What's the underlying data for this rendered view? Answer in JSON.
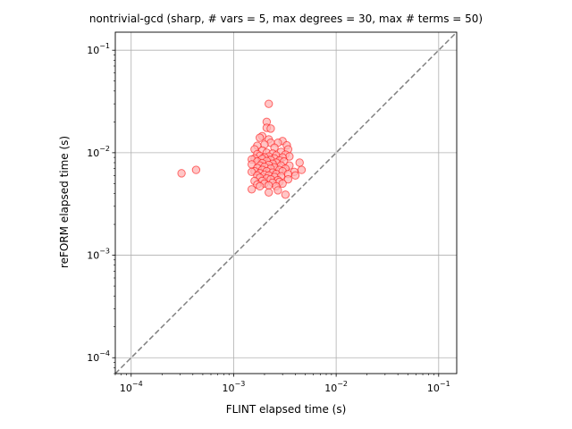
{
  "chart_data": {
    "type": "scatter",
    "title": "nontrivial-gcd (sharp, # vars = 5, max degrees = 30, max # terms = 50)",
    "xlabel": "FLINT elapsed time (s)",
    "ylabel": "reFORM elapsed time (s)",
    "xscale": "log",
    "yscale": "log",
    "xlim": [
      7e-05,
      0.15
    ],
    "ylim": [
      7e-05,
      0.15
    ],
    "grid": true,
    "x_ticks": [
      {
        "value": 0.0001,
        "base": "10",
        "exp": "−4"
      },
      {
        "value": 0.001,
        "base": "10",
        "exp": "−3"
      },
      {
        "value": 0.01,
        "base": "10",
        "exp": "−2"
      },
      {
        "value": 0.1,
        "base": "10",
        "exp": "−1"
      }
    ],
    "y_ticks": [
      {
        "value": 0.0001,
        "base": "10",
        "exp": "−4"
      },
      {
        "value": 0.001,
        "base": "10",
        "exp": "−3"
      },
      {
        "value": 0.01,
        "base": "10",
        "exp": "−2"
      },
      {
        "value": 0.1,
        "base": "10",
        "exp": "−1"
      }
    ],
    "reference_line": {
      "style": "dashed",
      "color": "#808080",
      "relation": "y = x"
    },
    "marker": {
      "edge_color": "#ff0000",
      "face_color": "#ffb3b3"
    },
    "series": [
      {
        "points": [
          [
            0.00031,
            0.0063
          ],
          [
            0.00043,
            0.0068
          ],
          [
            0.0022,
            0.03
          ],
          [
            0.0021,
            0.02
          ],
          [
            0.0021,
            0.0175
          ],
          [
            0.0023,
            0.0172
          ],
          [
            0.0019,
            0.0145
          ],
          [
            0.0018,
            0.014
          ],
          [
            0.0022,
            0.0135
          ],
          [
            0.003,
            0.013
          ],
          [
            0.0027,
            0.0125
          ],
          [
            0.0023,
            0.0125
          ],
          [
            0.002,
            0.012
          ],
          [
            0.0033,
            0.0118
          ],
          [
            0.0017,
            0.0117
          ],
          [
            0.0025,
            0.0112
          ],
          [
            0.0034,
            0.0108
          ],
          [
            0.0016,
            0.0108
          ],
          [
            0.0019,
            0.0105
          ],
          [
            0.0029,
            0.0102
          ],
          [
            0.0021,
            0.01
          ],
          [
            0.0024,
            0.0098
          ],
          [
            0.0017,
            0.0097
          ],
          [
            0.0032,
            0.0096
          ],
          [
            0.0026,
            0.0094
          ],
          [
            0.0018,
            0.0093
          ],
          [
            0.0022,
            0.0092
          ],
          [
            0.0035,
            0.0092
          ],
          [
            0.002,
            0.009
          ],
          [
            0.003,
            0.009
          ],
          [
            0.0016,
            0.0088
          ],
          [
            0.0025,
            0.0088
          ],
          [
            0.0019,
            0.0087
          ],
          [
            0.0015,
            0.0086
          ],
          [
            0.0023,
            0.0085
          ],
          [
            0.0028,
            0.0084
          ],
          [
            0.0021,
            0.0083
          ],
          [
            0.0017,
            0.0082
          ],
          [
            0.0031,
            0.0082
          ],
          [
            0.0044,
            0.008
          ],
          [
            0.0026,
            0.008
          ],
          [
            0.0019,
            0.0079
          ],
          [
            0.0024,
            0.0078
          ],
          [
            0.0015,
            0.0077
          ],
          [
            0.0022,
            0.0076
          ],
          [
            0.0018,
            0.0075
          ],
          [
            0.0029,
            0.0075
          ],
          [
            0.0035,
            0.0075
          ],
          [
            0.002,
            0.0073
          ],
          [
            0.0025,
            0.0072
          ],
          [
            0.0017,
            0.0071
          ],
          [
            0.0032,
            0.007
          ],
          [
            0.0023,
            0.007
          ],
          [
            0.0046,
            0.0068
          ],
          [
            0.0019,
            0.0068
          ],
          [
            0.0028,
            0.0068
          ],
          [
            0.0016,
            0.0066
          ],
          [
            0.0021,
            0.0066
          ],
          [
            0.0015,
            0.0065
          ],
          [
            0.003,
            0.0066
          ],
          [
            0.0024,
            0.0064
          ],
          [
            0.0039,
            0.0065
          ],
          [
            0.0018,
            0.0063
          ],
          [
            0.0026,
            0.0062
          ],
          [
            0.002,
            0.0061
          ],
          [
            0.0034,
            0.0062
          ],
          [
            0.0017,
            0.006
          ],
          [
            0.0022,
            0.006
          ],
          [
            0.004,
            0.006
          ],
          [
            0.0029,
            0.0059
          ],
          [
            0.0025,
            0.0058
          ],
          [
            0.0018,
            0.0057
          ],
          [
            0.0021,
            0.0056
          ],
          [
            0.0023,
            0.0055
          ],
          [
            0.0034,
            0.0055
          ],
          [
            0.0027,
            0.0054
          ],
          [
            0.0019,
            0.0053
          ],
          [
            0.0016,
            0.0053
          ],
          [
            0.0028,
            0.0052
          ],
          [
            0.0024,
            0.0051
          ],
          [
            0.002,
            0.005
          ],
          [
            0.0017,
            0.0049
          ],
          [
            0.003,
            0.005
          ],
          [
            0.0022,
            0.0048
          ],
          [
            0.0018,
            0.0047
          ],
          [
            0.0026,
            0.0047
          ],
          [
            0.0015,
            0.0044
          ],
          [
            0.0027,
            0.0043
          ],
          [
            0.0022,
            0.0041
          ],
          [
            0.0032,
            0.0039
          ]
        ]
      }
    ]
  }
}
